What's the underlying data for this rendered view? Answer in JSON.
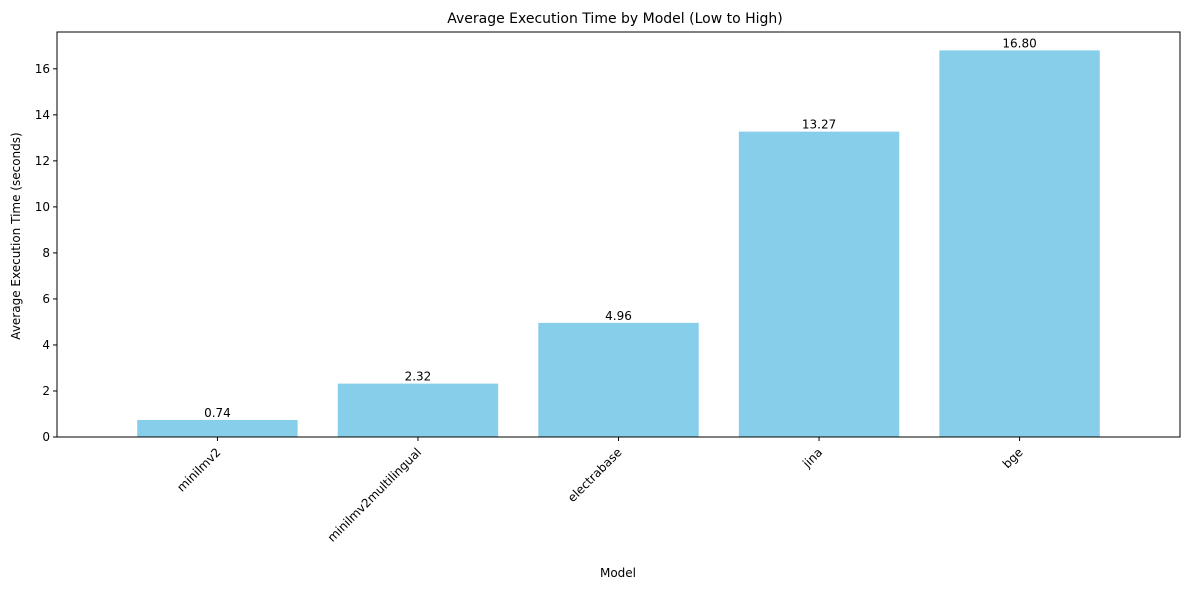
{
  "chart_data": {
    "type": "bar",
    "title": "Average Execution Time by Model (Low to High)",
    "xlabel": "Model",
    "ylabel": "Average Execution Time (seconds)",
    "categories": [
      "minilmv2",
      "minilmv2multilingual",
      "electrabase",
      "jina",
      "bge"
    ],
    "values": [
      0.74,
      2.32,
      4.96,
      13.27,
      16.8
    ],
    "value_labels": [
      "0.74",
      "2.32",
      "4.96",
      "13.27",
      "16.80"
    ],
    "ylim": [
      0,
      17.6
    ],
    "yticks": [
      0,
      2,
      4,
      6,
      8,
      10,
      12,
      14,
      16
    ],
    "grid": false,
    "bar_color": "#87CEEB"
  }
}
